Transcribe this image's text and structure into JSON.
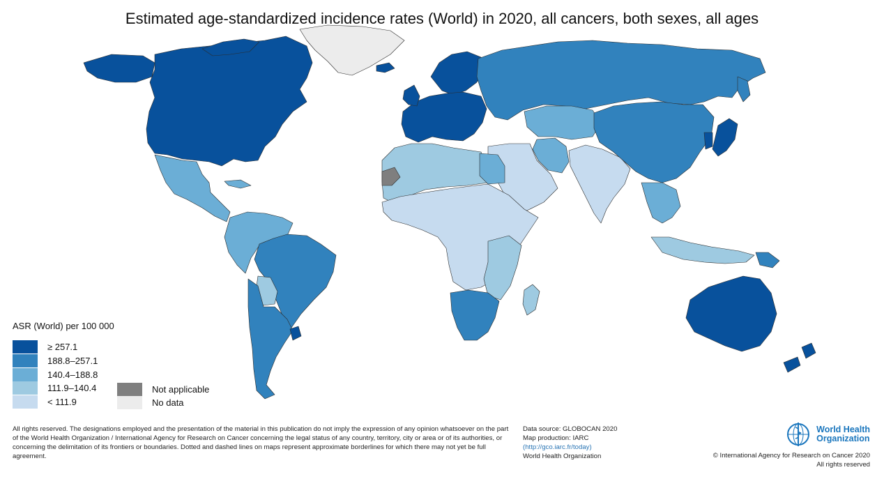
{
  "title": "Estimated age-standardized incidence rates (World) in 2020, all cancers, both sexes, all ages",
  "legend": {
    "title": "ASR (World) per 100 000",
    "classes": [
      {
        "label": "≥ 257.1",
        "color": "#08519c"
      },
      {
        "label": "188.8–257.1",
        "color": "#3182bd"
      },
      {
        "label": "140.4–188.8",
        "color": "#6baed6"
      },
      {
        "label": "111.9–140.4",
        "color": "#9ecae1"
      },
      {
        "label": "< 111.9",
        "color": "#c6dbef"
      }
    ],
    "extra": [
      {
        "label": "Not applicable",
        "color": "#7f7f7f"
      },
      {
        "label": "No data",
        "color": "#ececec"
      }
    ]
  },
  "disclaimer": "All rights reserved. The designations employed and the presentation of the material in this publication do not imply the expression of any opinion whatsoever on the part of the World Health Organization / International Agency for Research on Cancer concerning the legal status of any country, territory, city or area or of its authorities, or concerning the delimitation of its frontiers or boundaries. Dotted and dashed lines on maps represent approximate borderlines for which there may not yet be full agreement.",
  "source": {
    "line1": "Data source: GLOBOCAN 2020",
    "line2": "Map production: IARC",
    "link": "(http://gco.iarc.fr/today)",
    "line4": "World Health Organization"
  },
  "who": {
    "name_line1": "World Health",
    "name_line2": "Organization",
    "copyright": "© International Agency for Research on Cancer 2020",
    "rights": "All rights reserved"
  },
  "regions": [
    {
      "name": "North America",
      "class": 0
    },
    {
      "name": "Greenland",
      "class": "no_data"
    },
    {
      "name": "Mexico & Central America",
      "class": 2
    },
    {
      "name": "South America (north)",
      "class": 2
    },
    {
      "name": "Brazil",
      "class": 1
    },
    {
      "name": "Bolivia",
      "class": 3
    },
    {
      "name": "Argentina & Chile",
      "class": 1
    },
    {
      "name": "Uruguay",
      "class": 0
    },
    {
      "name": "Western Europe",
      "class": 0
    },
    {
      "name": "Nordic countries",
      "class": 0
    },
    {
      "name": "Russia",
      "class": 1
    },
    {
      "name": "Central Asia",
      "class": 2
    },
    {
      "name": "Middle East",
      "class": 4
    },
    {
      "name": "Iran",
      "class": 2
    },
    {
      "name": "North Africa",
      "class": 3
    },
    {
      "name": "Egypt",
      "class": 2
    },
    {
      "name": "Sub-Saharan Africa",
      "class": 4
    },
    {
      "name": "East Africa",
      "class": 3
    },
    {
      "name": "Southern Africa",
      "class": 1
    },
    {
      "name": "Western Sahara",
      "class": "not_applicable"
    },
    {
      "name": "India",
      "class": 4
    },
    {
      "name": "China & Mongolia",
      "class": 1
    },
    {
      "name": "Japan & Korea",
      "class": 0
    },
    {
      "name": "Southeast Asia",
      "class": 2
    },
    {
      "name": "Indonesia",
      "class": 3
    },
    {
      "name": "Papua New Guinea",
      "class": 1
    },
    {
      "name": "Australia",
      "class": 0
    },
    {
      "name": "New Zealand",
      "class": 0
    }
  ]
}
